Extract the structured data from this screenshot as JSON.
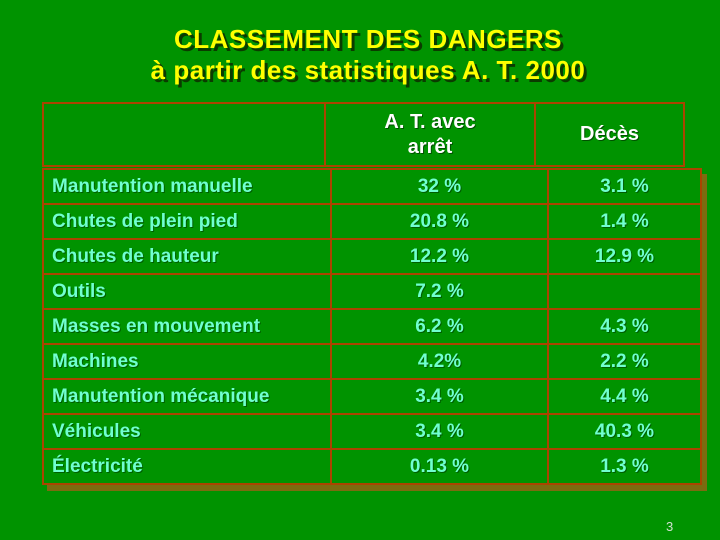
{
  "slide": {
    "title_line1": "CLASSEMENT DES DANGERS",
    "title_line2": "à partir des statistiques A. T. 2000",
    "page_number": "3"
  },
  "colors": {
    "background": "#009300",
    "title_text": "#ffff00",
    "header_text": "#ffffff",
    "body_text": "#70ffd0",
    "table_border": "#aa4400",
    "table_shadow": "#7b6b10"
  },
  "table": {
    "header": {
      "col1": "",
      "col2_line1": "A. T. avec",
      "col2_line2": "arrêt",
      "col3": "Décès"
    },
    "rows": [
      {
        "label": "Manutention manuelle",
        "at": "32 %",
        "deces": "3.1 %"
      },
      {
        "label": "Chutes de plein pied",
        "at": "20.8 %",
        "deces": "1.4 %"
      },
      {
        "label": "Chutes de hauteur",
        "at": "12.2 %",
        "deces": "12.9 %"
      },
      {
        "label": "Outils",
        "at": "7.2 %",
        "deces": ""
      },
      {
        "label": "Masses en mouvement",
        "at": "6.2 %",
        "deces": "4.3 %"
      },
      {
        "label": "Machines",
        "at": "4.2%",
        "deces": "2.2 %"
      },
      {
        "label": "Manutention mécanique",
        "at": "3.4 %",
        "deces": "4.4 %"
      },
      {
        "label": "Véhicules",
        "at": "3.4 %",
        "deces": "40.3 %"
      },
      {
        "label": "Électricité",
        "at": "0.13 %",
        "deces": "1.3 %"
      }
    ]
  }
}
